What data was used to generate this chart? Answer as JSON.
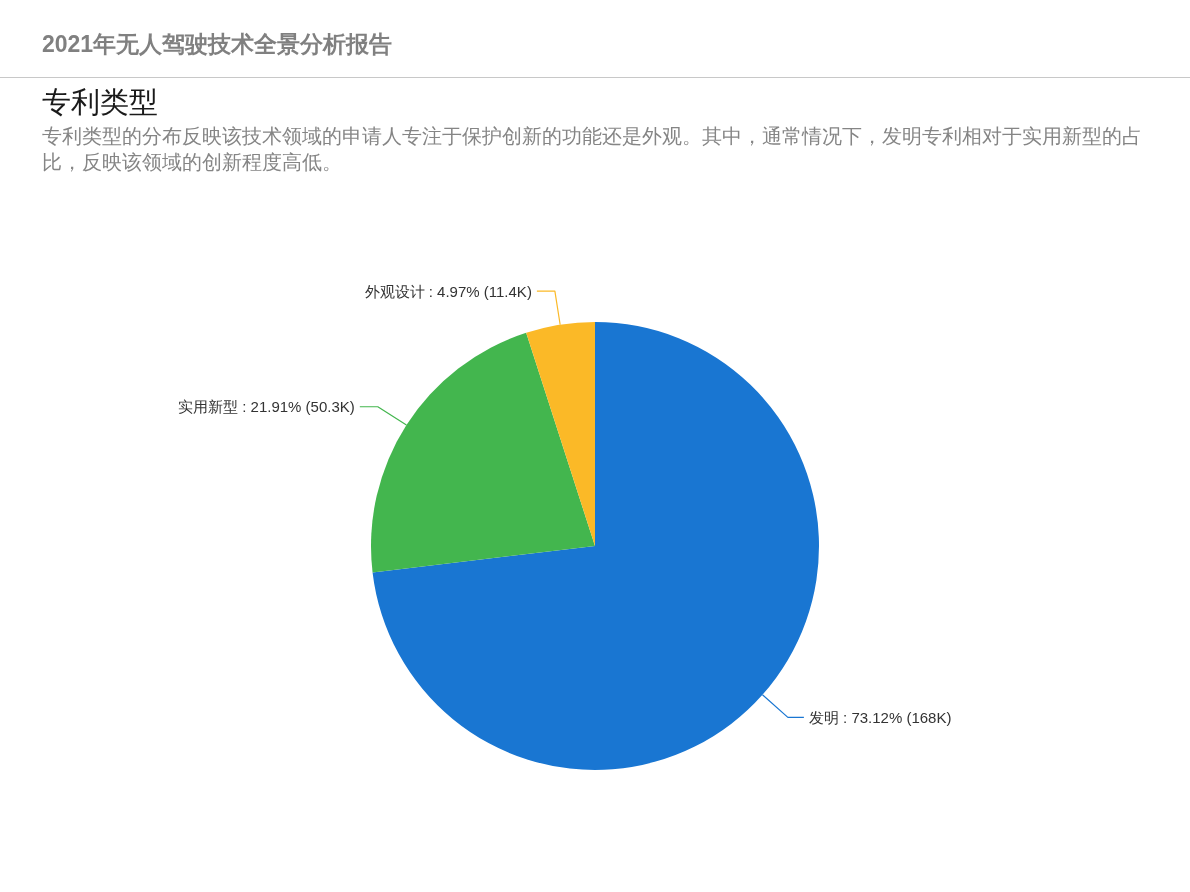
{
  "chart_data": {
    "type": "pie",
    "title": "专利类型",
    "subtitle": "专利类型的分布反映该技术领域的申请人专注于保护创新的功能还是外观。其中，通常情况下，发明专利相对于实用新型的占比，反映该领域的创新程度高低。",
    "annotations": [
      "2021年无人驾驶技术全景分析报告"
    ],
    "categories": [
      "发明",
      "实用新型",
      "外观设计"
    ],
    "values": [
      73.12,
      21.91,
      4.97
    ],
    "value_labels": [
      "73.12% (168K)",
      "21.91% (50.3K)",
      "4.97% (11.4K)"
    ],
    "colors": [
      "#1976d2",
      "#43b64e",
      "#fbb927"
    ]
  }
}
